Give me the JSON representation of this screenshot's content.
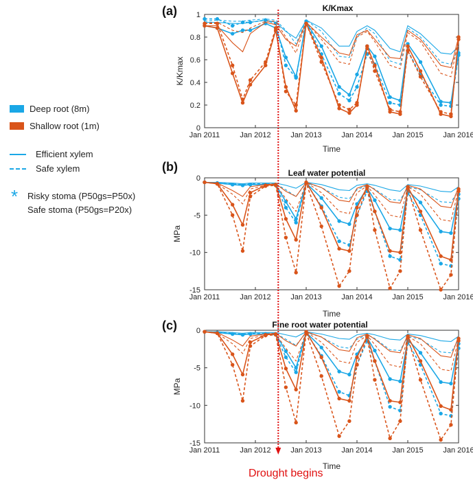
{
  "legend": {
    "deep_label": "Deep root (8m)",
    "shallow_label": "Shallow root (1m)",
    "efficient_label": "Efficient xylem",
    "safe_xylem_label": "Safe xylem",
    "star_symbol": "*",
    "risky_label": "Risky stoma (P50gs=P50x)",
    "safe_stoma_label": "Safe stoma (P50gs=P20x)"
  },
  "colors": {
    "deep": "#1aa7e6",
    "shallow": "#d9541a",
    "drought": "#e01010"
  },
  "drought_label": "Drought begins",
  "drought_date": 2012.45,
  "chart_data": [
    {
      "type": "line",
      "panel": "(a)",
      "title": "K/Kmax",
      "xlabel": "Time",
      "ylabel": "K/Kmax",
      "xlim": [
        2011,
        2016
      ],
      "ylim": [
        0,
        1
      ],
      "xticks": [
        2011,
        2012,
        2013,
        2014,
        2015,
        2016
      ],
      "xtick_labels": [
        "Jan 2011",
        "Jan 2012",
        "Jan 2013",
        "Jan 2014",
        "Jan 2015",
        "Jan 2016"
      ],
      "yticks": [
        0,
        0.2,
        0.4,
        0.6,
        0.8,
        1
      ],
      "ytick_labels": [
        "0",
        "0.2",
        "0.4",
        "0.6",
        "0.8",
        "1"
      ],
      "x": [
        2011.0,
        2011.25,
        2011.55,
        2011.75,
        2011.9,
        2012.2,
        2012.4,
        2012.6,
        2012.8,
        2013.0,
        2013.3,
        2013.65,
        2013.85,
        2014.0,
        2014.2,
        2014.35,
        2014.65,
        2014.85,
        2015.0,
        2015.25,
        2015.65,
        2015.85,
        2016.0
      ],
      "series": [
        {
          "name": "Deep root, efficient xylem, risky stoma",
          "root": "deep",
          "xylem": "efficient",
          "stoma": "risky",
          "values": [
            0.93,
            0.93,
            0.92,
            0.92,
            0.93,
            0.95,
            0.93,
            0.85,
            0.79,
            0.95,
            0.88,
            0.72,
            0.72,
            0.85,
            0.9,
            0.86,
            0.7,
            0.67,
            0.9,
            0.83,
            0.66,
            0.65,
            0.72
          ]
        },
        {
          "name": "Deep root, safe xylem, risky stoma",
          "root": "deep",
          "xylem": "safe",
          "stoma": "risky",
          "values": [
            0.94,
            0.95,
            0.94,
            0.94,
            0.95,
            0.96,
            0.95,
            0.86,
            0.74,
            0.95,
            0.85,
            0.63,
            0.62,
            0.8,
            0.88,
            0.83,
            0.59,
            0.56,
            0.88,
            0.8,
            0.58,
            0.56,
            0.7
          ]
        },
        {
          "name": "Deep root, efficient xylem, safe stoma",
          "root": "deep",
          "xylem": "efficient",
          "stoma": "safe",
          "values": [
            0.9,
            0.88,
            0.83,
            0.86,
            0.86,
            0.92,
            0.88,
            0.62,
            0.45,
            0.93,
            0.72,
            0.36,
            0.29,
            0.47,
            0.72,
            0.63,
            0.27,
            0.24,
            0.74,
            0.58,
            0.23,
            0.22,
            0.66
          ]
        },
        {
          "name": "Deep root, safe xylem, safe stoma",
          "root": "deep",
          "xylem": "safe",
          "stoma": "safe",
          "values": [
            0.96,
            0.96,
            0.9,
            0.93,
            0.93,
            0.95,
            0.92,
            0.55,
            0.44,
            0.94,
            0.65,
            0.3,
            0.24,
            0.36,
            0.65,
            0.56,
            0.22,
            0.2,
            0.68,
            0.47,
            0.2,
            0.19,
            0.64
          ]
        },
        {
          "name": "Shallow root, efficient xylem, risky stoma",
          "root": "shallow",
          "xylem": "efficient",
          "stoma": "risky",
          "values": [
            0.9,
            0.9,
            0.75,
            0.67,
            0.83,
            0.93,
            0.91,
            0.78,
            0.72,
            0.93,
            0.8,
            0.66,
            0.64,
            0.82,
            0.86,
            0.78,
            0.62,
            0.61,
            0.86,
            0.78,
            0.55,
            0.53,
            0.8
          ]
        },
        {
          "name": "Shallow root, safe xylem, risky stoma",
          "root": "shallow",
          "xylem": "safe",
          "stoma": "risky",
          "values": [
            0.92,
            0.93,
            0.86,
            0.84,
            0.88,
            0.94,
            0.94,
            0.8,
            0.66,
            0.93,
            0.78,
            0.58,
            0.56,
            0.8,
            0.85,
            0.76,
            0.55,
            0.52,
            0.84,
            0.76,
            0.48,
            0.45,
            0.78
          ]
        },
        {
          "name": "Shallow root, efficient xylem, safe stoma",
          "root": "shallow",
          "xylem": "efficient",
          "stoma": "safe",
          "values": [
            0.9,
            0.88,
            0.48,
            0.22,
            0.38,
            0.55,
            0.86,
            0.36,
            0.15,
            0.92,
            0.62,
            0.17,
            0.13,
            0.2,
            0.72,
            0.55,
            0.14,
            0.12,
            0.72,
            0.5,
            0.12,
            0.1,
            0.8
          ]
        },
        {
          "name": "Shallow root, safe xylem, safe stoma",
          "root": "shallow",
          "xylem": "safe",
          "stoma": "safe",
          "values": [
            0.92,
            0.92,
            0.55,
            0.25,
            0.42,
            0.58,
            0.88,
            0.32,
            0.2,
            0.92,
            0.58,
            0.2,
            0.16,
            0.22,
            0.7,
            0.5,
            0.16,
            0.14,
            0.68,
            0.45,
            0.14,
            0.12,
            0.78
          ]
        }
      ]
    },
    {
      "type": "line",
      "panel": "(b)",
      "title": "Leaf water potential",
      "xlabel": "Time",
      "ylabel": "MPa",
      "xlim": [
        2011,
        2016
      ],
      "ylim": [
        -15,
        0
      ],
      "xticks": [
        2011,
        2012,
        2013,
        2014,
        2015,
        2016
      ],
      "xtick_labels": [
        "Jan 2011",
        "Jan 2012",
        "Jan 2013",
        "Jan 2014",
        "Jan 2015",
        "Jan 2016"
      ],
      "yticks": [
        -15,
        -10,
        -5,
        0
      ],
      "ytick_labels": [
        "-15",
        "-10",
        "-5",
        "0"
      ],
      "x": [
        2011.0,
        2011.25,
        2011.55,
        2011.75,
        2011.9,
        2012.2,
        2012.4,
        2012.6,
        2012.8,
        2013.0,
        2013.3,
        2013.65,
        2013.85,
        2014.0,
        2014.2,
        2014.35,
        2014.65,
        2014.85,
        2015.0,
        2015.25,
        2015.65,
        2015.85,
        2016.0
      ],
      "series": [
        {
          "name": "Deep root, efficient xylem, risky stoma",
          "root": "deep",
          "xylem": "efficient",
          "stoma": "risky",
          "values": [
            -0.6,
            -0.6,
            -0.7,
            -0.8,
            -0.7,
            -0.7,
            -0.7,
            -1.0,
            -1.4,
            -0.6,
            -0.9,
            -1.6,
            -1.7,
            -1.0,
            -0.8,
            -1.0,
            -1.6,
            -1.8,
            -0.9,
            -1.1,
            -1.8,
            -1.9,
            -1.2
          ]
        },
        {
          "name": "Deep root, safe xylem, risky stoma",
          "root": "deep",
          "xylem": "safe",
          "stoma": "risky",
          "values": [
            -0.6,
            -0.7,
            -0.8,
            -0.9,
            -0.8,
            -0.8,
            -0.8,
            -1.6,
            -2.5,
            -0.7,
            -1.3,
            -2.6,
            -2.8,
            -1.6,
            -1.0,
            -1.5,
            -2.9,
            -3.0,
            -1.2,
            -1.6,
            -3.2,
            -3.3,
            -1.6
          ]
        },
        {
          "name": "Deep root, efficient xylem, safe stoma",
          "root": "deep",
          "xylem": "efficient",
          "stoma": "safe",
          "values": [
            -0.6,
            -0.7,
            -0.9,
            -1.0,
            -0.9,
            -0.9,
            -0.9,
            -3.2,
            -5.5,
            -0.7,
            -2.7,
            -5.8,
            -6.2,
            -3.5,
            -1.4,
            -3.0,
            -6.8,
            -7.0,
            -1.7,
            -3.3,
            -7.2,
            -7.4,
            -2.2
          ]
        },
        {
          "name": "Deep root, safe xylem, safe stoma",
          "root": "deep",
          "xylem": "safe",
          "stoma": "safe",
          "values": [
            -0.6,
            -0.7,
            -0.9,
            -1.0,
            -0.9,
            -0.9,
            -1.0,
            -4.0,
            -6.0,
            -0.7,
            -3.8,
            -8.5,
            -9.0,
            -5.0,
            -1.8,
            -4.5,
            -10.5,
            -11.0,
            -2.0,
            -5.0,
            -11.5,
            -11.8,
            -2.8
          ]
        },
        {
          "name": "Shallow root, efficient xylem, risky stoma",
          "root": "shallow",
          "xylem": "efficient",
          "stoma": "risky",
          "values": [
            -0.6,
            -0.7,
            -1.7,
            -2.5,
            -1.2,
            -0.9,
            -0.8,
            -1.8,
            -2.5,
            -0.6,
            -1.3,
            -3.0,
            -3.2,
            -1.4,
            -0.9,
            -1.6,
            -3.2,
            -3.4,
            -1.0,
            -1.5,
            -3.8,
            -4.0,
            -1.2
          ]
        },
        {
          "name": "Shallow root, safe xylem, risky stoma",
          "root": "shallow",
          "xylem": "safe",
          "stoma": "risky",
          "values": [
            -0.6,
            -0.8,
            -2.2,
            -3.5,
            -1.5,
            -1.0,
            -0.9,
            -2.8,
            -4.5,
            -0.6,
            -2.0,
            -4.5,
            -4.8,
            -2.0,
            -1.1,
            -2.3,
            -5.0,
            -5.3,
            -1.2,
            -2.2,
            -5.6,
            -5.8,
            -1.5
          ]
        },
        {
          "name": "Shallow root, efficient xylem, safe stoma",
          "root": "shallow",
          "xylem": "efficient",
          "stoma": "safe",
          "values": [
            -0.6,
            -0.8,
            -3.6,
            -6.3,
            -2.0,
            -1.0,
            -0.9,
            -5.5,
            -8.3,
            -0.6,
            -4.0,
            -9.5,
            -9.8,
            -4.0,
            -1.2,
            -4.5,
            -9.8,
            -10.0,
            -1.2,
            -4.5,
            -10.5,
            -11.0,
            -1.5
          ]
        },
        {
          "name": "Shallow root, safe xylem, safe stoma",
          "root": "shallow",
          "xylem": "safe",
          "stoma": "safe",
          "values": [
            -0.6,
            -0.8,
            -5.0,
            -9.8,
            -2.5,
            -1.1,
            -1.0,
            -8.0,
            -12.7,
            -0.7,
            -6.5,
            -14.5,
            -12.5,
            -5.0,
            -1.3,
            -7.0,
            -14.8,
            -12.5,
            -1.4,
            -7.0,
            -15.0,
            -13.0,
            -1.8
          ]
        }
      ]
    },
    {
      "type": "line",
      "panel": "(c)",
      "title": "Fine root water potential",
      "xlabel": "Time",
      "ylabel": "MPa",
      "xlim": [
        2011,
        2016
      ],
      "ylim": [
        -15,
        0
      ],
      "xticks": [
        2011,
        2012,
        2013,
        2014,
        2015,
        2016
      ],
      "xtick_labels": [
        "Jan 2011",
        "Jan 2012",
        "Jan 2013",
        "Jan 2014",
        "Jan 2015",
        "Jan 2016"
      ],
      "yticks": [
        -15,
        -10,
        -5,
        0
      ],
      "ytick_labels": [
        "-15",
        "-10",
        "-5",
        "0"
      ],
      "x": [
        2011.0,
        2011.25,
        2011.55,
        2011.75,
        2011.9,
        2012.2,
        2012.4,
        2012.6,
        2012.8,
        2013.0,
        2013.3,
        2013.65,
        2013.85,
        2014.0,
        2014.2,
        2014.35,
        2014.65,
        2014.85,
        2015.0,
        2015.25,
        2015.65,
        2015.85,
        2016.0
      ],
      "series": [
        {
          "name": "Deep root, efficient xylem, risky stoma",
          "root": "deep",
          "xylem": "efficient",
          "stoma": "risky",
          "values": [
            -0.2,
            -0.2,
            -0.3,
            -0.4,
            -0.3,
            -0.3,
            -0.3,
            -0.6,
            -0.9,
            -0.2,
            -0.5,
            -1.1,
            -1.2,
            -0.6,
            -0.4,
            -0.6,
            -1.2,
            -1.3,
            -0.5,
            -0.7,
            -1.4,
            -1.5,
            -0.8
          ]
        },
        {
          "name": "Deep root, safe xylem, risky stoma",
          "root": "deep",
          "xylem": "safe",
          "stoma": "risky",
          "values": [
            -0.2,
            -0.2,
            -0.4,
            -0.5,
            -0.4,
            -0.4,
            -0.4,
            -1.2,
            -2.0,
            -0.3,
            -0.9,
            -2.2,
            -2.4,
            -1.2,
            -0.6,
            -1.1,
            -2.6,
            -2.7,
            -0.8,
            -1.2,
            -2.9,
            -3.0,
            -1.2
          ]
        },
        {
          "name": "Deep root, efficient xylem, safe stoma",
          "root": "deep",
          "xylem": "efficient",
          "stoma": "safe",
          "values": [
            -0.2,
            -0.3,
            -0.5,
            -0.6,
            -0.5,
            -0.5,
            -0.5,
            -2.8,
            -5.0,
            -0.3,
            -2.3,
            -5.5,
            -5.9,
            -3.2,
            -1.0,
            -2.7,
            -6.5,
            -6.8,
            -1.3,
            -3.0,
            -6.9,
            -7.1,
            -1.8
          ]
        },
        {
          "name": "Deep root, safe xylem, safe stoma",
          "root": "deep",
          "xylem": "safe",
          "stoma": "safe",
          "values": [
            -0.2,
            -0.3,
            -0.5,
            -0.6,
            -0.5,
            -0.5,
            -0.6,
            -3.6,
            -5.6,
            -0.3,
            -3.4,
            -8.2,
            -8.7,
            -4.6,
            -1.4,
            -4.1,
            -10.2,
            -10.7,
            -1.6,
            -4.6,
            -11.1,
            -11.4,
            -2.4
          ]
        },
        {
          "name": "Shallow root, efficient xylem, risky stoma",
          "root": "shallow",
          "xylem": "efficient",
          "stoma": "risky",
          "values": [
            -0.2,
            -0.3,
            -1.3,
            -2.1,
            -0.8,
            -0.5,
            -0.4,
            -1.4,
            -2.1,
            -0.2,
            -0.9,
            -2.6,
            -2.8,
            -1.0,
            -0.5,
            -1.2,
            -2.8,
            -3.0,
            -0.6,
            -1.1,
            -3.4,
            -3.6,
            -0.8
          ]
        },
        {
          "name": "Shallow root, safe xylem, risky stoma",
          "root": "shallow",
          "xylem": "safe",
          "stoma": "risky",
          "values": [
            -0.2,
            -0.4,
            -1.8,
            -3.1,
            -1.1,
            -0.6,
            -0.5,
            -2.4,
            -4.1,
            -0.2,
            -1.6,
            -4.1,
            -4.4,
            -1.6,
            -0.7,
            -1.9,
            -4.6,
            -4.9,
            -0.8,
            -1.8,
            -5.2,
            -5.4,
            -1.1
          ]
        },
        {
          "name": "Shallow root, efficient xylem, safe stoma",
          "root": "shallow",
          "xylem": "efficient",
          "stoma": "safe",
          "values": [
            -0.2,
            -0.4,
            -3.2,
            -5.9,
            -1.6,
            -0.6,
            -0.5,
            -5.1,
            -7.9,
            -0.2,
            -3.6,
            -9.1,
            -9.4,
            -3.6,
            -0.8,
            -4.1,
            -9.4,
            -9.6,
            -0.8,
            -4.1,
            -10.1,
            -10.6,
            -1.1
          ]
        },
        {
          "name": "Shallow root, safe xylem, safe stoma",
          "root": "shallow",
          "xylem": "safe",
          "stoma": "safe",
          "values": [
            -0.2,
            -0.4,
            -4.6,
            -9.4,
            -2.1,
            -0.7,
            -0.6,
            -7.6,
            -12.3,
            -0.3,
            -6.1,
            -14.1,
            -12.1,
            -4.6,
            -0.9,
            -6.6,
            -14.4,
            -12.1,
            -1.0,
            -6.6,
            -14.6,
            -12.6,
            -1.4
          ]
        }
      ]
    }
  ]
}
